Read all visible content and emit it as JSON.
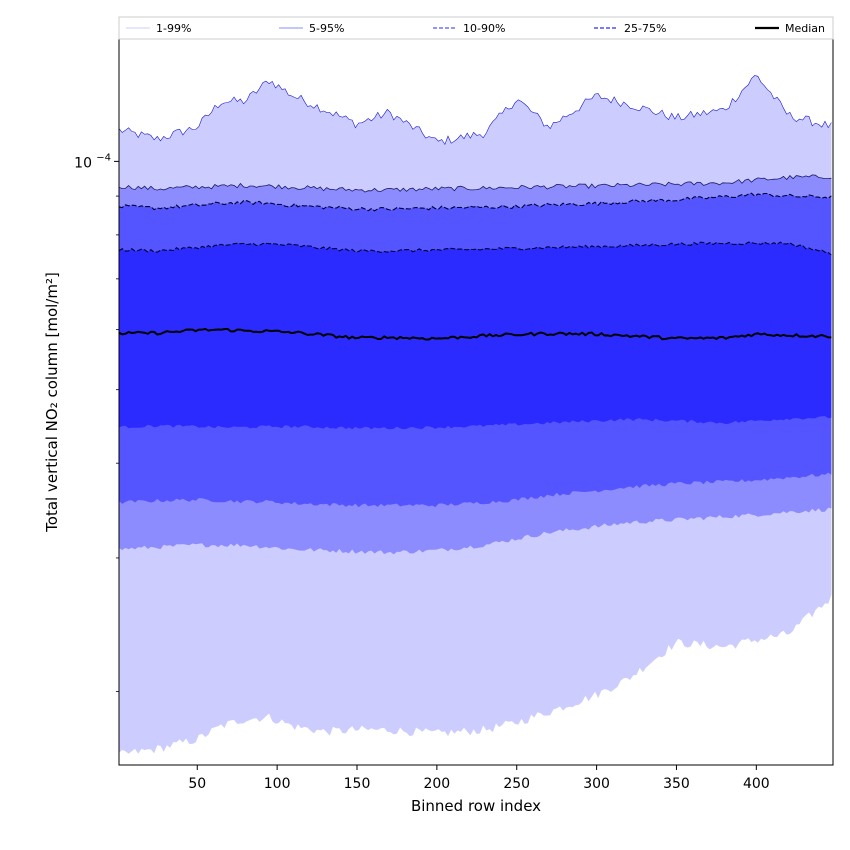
{
  "chart_data": {
    "type": "area",
    "title": "",
    "xlabel": "Binned row index",
    "ylabel": "Total vertical NO₂ column [mol/m²]",
    "xlim": [
      1,
      448
    ],
    "ylim": [
      1.6e-05,
      0.000145
    ],
    "yscale": "log",
    "x_ticks": [
      {
        "value": 50,
        "label": "50"
      },
      {
        "value": 100,
        "label": "100"
      },
      {
        "value": 150,
        "label": "150"
      },
      {
        "value": 200,
        "label": "200"
      },
      {
        "value": 250,
        "label": "250"
      },
      {
        "value": 300,
        "label": "300"
      },
      {
        "value": 350,
        "label": "350"
      },
      {
        "value": 400,
        "label": "400"
      }
    ],
    "y_major_ticks": [
      {
        "value": 0.0001,
        "label_base": "10",
        "label_exp": "−4"
      }
    ],
    "y_minor_ticks": [
      2e-05,
      3e-05,
      4e-05,
      5e-05,
      6e-05,
      7e-05,
      8e-05,
      9e-05
    ],
    "legend_position": "top (above plot, single row)",
    "legend": [
      {
        "label": "1-99%",
        "color": "#ccccff",
        "dash": "solid"
      },
      {
        "label": "5-95%",
        "color": "#8c8cff",
        "dash": "solid"
      },
      {
        "label": "10-90%",
        "color": "#5555ff",
        "dash": "dashed"
      },
      {
        "label": "25-75%",
        "color": "#2b2bff",
        "dash": "dashed"
      },
      {
        "label": "Median",
        "color": "#000000",
        "dash": "solid"
      }
    ],
    "x": [
      1,
      25,
      50,
      65,
      80,
      95,
      110,
      130,
      150,
      170,
      200,
      230,
      250,
      270,
      300,
      320,
      350,
      380,
      400,
      420,
      448
    ],
    "bands": [
      {
        "name": "1-99%",
        "color": "#ccccff",
        "lower": [
          1.65e-05,
          1.68e-05,
          1.73e-05,
          1.8e-05,
          1.84e-05,
          1.85e-05,
          1.8e-05,
          1.77e-05,
          1.78e-05,
          1.78e-05,
          1.76e-05,
          1.78e-05,
          1.82e-05,
          1.88e-05,
          1.98e-05,
          2.08e-05,
          2.32e-05,
          2.29e-05,
          2.34e-05,
          2.38e-05,
          2.67e-05
        ],
        "upper": [
          0.00011,
          0.000107,
          0.000111,
          0.00012,
          0.00012,
          0.000128,
          0.000122,
          0.000117,
          0.000112,
          0.000116,
          0.000106,
          0.000109,
          0.000121,
          0.000111,
          0.000122,
          0.000119,
          0.000114,
          0.000117,
          0.00013,
          0.000115,
          0.000111
        ]
      },
      {
        "name": "5-95%",
        "color": "#8c8cff",
        "lower": [
          3.08e-05,
          3.1e-05,
          3.12e-05,
          3.12e-05,
          3.12e-05,
          3.1e-05,
          3.08e-05,
          3.07e-05,
          3.06e-05,
          3.05e-05,
          3.07e-05,
          3.12e-05,
          3.18e-05,
          3.24e-05,
          3.3e-05,
          3.34e-05,
          3.37e-05,
          3.4e-05,
          3.42e-05,
          3.45e-05,
          3.48e-05
        ],
        "upper": [
          9.27e-05,
          9.2e-05,
          9.25e-05,
          9.27e-05,
          9.3e-05,
          9.28e-05,
          9.25e-05,
          9.2e-05,
          9.17e-05,
          9.17e-05,
          9.2e-05,
          9.22e-05,
          9.24e-05,
          9.26e-05,
          9.28e-05,
          9.3e-05,
          9.33e-05,
          9.37e-05,
          9.45e-05,
          9.52e-05,
          9.55e-05
        ]
      },
      {
        "name": "10-90%",
        "color": "#5555ff",
        "lower": [
          3.55e-05,
          3.57e-05,
          3.58e-05,
          3.57e-05,
          3.56e-05,
          3.56e-05,
          3.54e-05,
          3.53e-05,
          3.52e-05,
          3.52e-05,
          3.52e-05,
          3.55e-05,
          3.58e-05,
          3.63e-05,
          3.68e-05,
          3.72e-05,
          3.76e-05,
          3.78e-05,
          3.8e-05,
          3.83e-05,
          3.87e-05
        ],
        "upper": [
          8.72e-05,
          8.68e-05,
          8.75e-05,
          8.8e-05,
          8.83e-05,
          8.8e-05,
          8.75e-05,
          8.7e-05,
          8.66e-05,
          8.65e-05,
          8.68e-05,
          8.7e-05,
          8.72e-05,
          8.76e-05,
          8.8e-05,
          8.85e-05,
          8.9e-05,
          8.98e-05,
          9.05e-05,
          9e-05,
          8.97e-05
        ]
      },
      {
        "name": "25-75%",
        "color": "#2b2bff",
        "lower": [
          4.46e-05,
          4.48e-05,
          4.47e-05,
          4.46e-05,
          4.46e-05,
          4.47e-05,
          4.47e-05,
          4.46e-05,
          4.45e-05,
          4.45e-05,
          4.46e-05,
          4.48e-05,
          4.5e-05,
          4.52e-05,
          4.55e-05,
          4.57e-05,
          4.55e-05,
          4.52e-05,
          4.55e-05,
          4.58e-05,
          4.6e-05
        ],
        "upper": [
          7.65e-05,
          7.62e-05,
          7.7e-05,
          7.75e-05,
          7.78e-05,
          7.78e-05,
          7.75e-05,
          7.68e-05,
          7.62e-05,
          7.62e-05,
          7.64e-05,
          7.66e-05,
          7.68e-05,
          7.7e-05,
          7.72e-05,
          7.74e-05,
          7.78e-05,
          7.8e-05,
          7.8e-05,
          7.8e-05,
          7.55e-05
        ]
      }
    ],
    "median": {
      "name": "Median",
      "color": "#000000",
      "values": [
        5.93e-05,
        5.94e-05,
        5.99e-05,
        6e-05,
        5.98e-05,
        5.97e-05,
        5.95e-05,
        5.9e-05,
        5.85e-05,
        5.86e-05,
        5.84e-05,
        5.89e-05,
        5.91e-05,
        5.93e-05,
        5.92e-05,
        5.89e-05,
        5.84e-05,
        5.85e-05,
        5.92e-05,
        5.9e-05,
        5.88e-05
      ]
    }
  }
}
